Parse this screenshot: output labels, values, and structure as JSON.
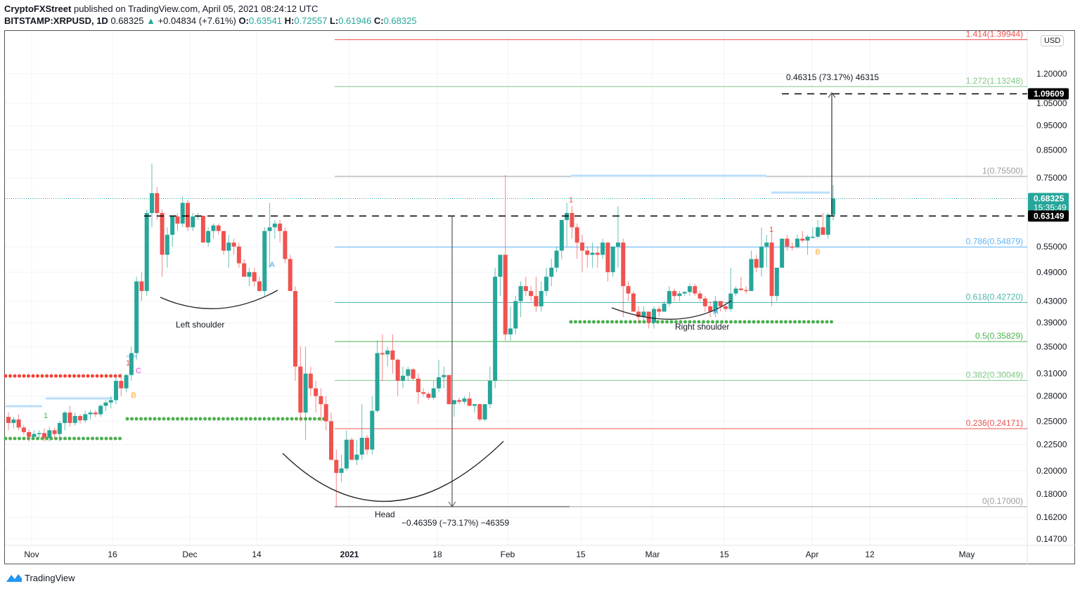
{
  "header": {
    "publisher": "CryptoFXStreet",
    "published_text": " published on TradingView.com, April 05, 2021 08:24:12 UTC",
    "symbol": "BITSTAMP:XRPUSD, 1D",
    "last": "0.68325",
    "change": "+0.04834 (+7.61%)",
    "o_label": "O:",
    "o": "0.63541",
    "h_label": "H:",
    "h": "0.72557",
    "l_label": "L:",
    "l": "0.61946",
    "c_label": "C:",
    "c": "0.68325"
  },
  "currency_button": "USD",
  "footer": {
    "brand": "TradingView"
  },
  "colors": {
    "up": "#26a69a",
    "down": "#ef5350",
    "accent": "#2196f3"
  },
  "chart_data": {
    "type": "candlestick",
    "title": "BITSTAMP:XRPUSD, 1D",
    "ylabel": "USD",
    "yscale": "log",
    "ylim": [
      0.14,
      1.45
    ],
    "y_ticks": [
      "1.20000",
      "1.05000",
      "0.95000",
      "0.85000",
      "0.75000",
      "0.55000",
      "0.49000",
      "0.43000",
      "0.39000",
      "0.35000",
      "0.31000",
      "0.28000",
      "0.25000",
      "0.22500",
      "0.20000",
      "0.18000",
      "0.16200",
      "0.14700"
    ],
    "x_ticks": [
      "Nov",
      "16",
      "Dec",
      "14",
      "2021",
      "18",
      "Feb",
      "15",
      "Mar",
      "15",
      "Apr",
      "12",
      "May"
    ],
    "price_labels": [
      {
        "value": "1.09609",
        "style": "black"
      },
      {
        "value": "0.68325",
        "sub": "15:35:49",
        "style": "green"
      },
      {
        "value": "0.63149",
        "style": "black"
      }
    ],
    "fib_levels": [
      {
        "label": "1.414(1.39944)",
        "price": 1.39944,
        "color": "#ef5350"
      },
      {
        "label": "1.272(1.13248)",
        "price": 1.13248,
        "color": "#81c784"
      },
      {
        "label": "1(0.75500)",
        "price": 0.755,
        "color": "#9e9e9e"
      },
      {
        "label": "0.786(0.54879)",
        "price": 0.54879,
        "color": "#64b5f6"
      },
      {
        "label": "0.618(0.42720)",
        "price": 0.4272,
        "color": "#4db6ac"
      },
      {
        "label": "0.5(0.35829)",
        "price": 0.35829,
        "color": "#4caf50"
      },
      {
        "label": "0.382(0.30049)",
        "price": 0.30049,
        "color": "#81c784"
      },
      {
        "label": "0.236(0.24171)",
        "price": 0.24171,
        "color": "#ef5350"
      },
      {
        "label": "0(0.17000)",
        "price": 0.17,
        "color": "#9e9e9e"
      }
    ],
    "annotations": {
      "left_shoulder": "Left shoulder",
      "head": "Head",
      "right_shoulder": "Right shoulder",
      "target_measure": "0.46315 (73.17%) 46315",
      "head_measure": "−0.46359 (−73.17%) −46359",
      "neckline": 0.63149,
      "target": 1.09609
    },
    "markers": [
      "1",
      "C",
      "B",
      "A",
      "1",
      "A",
      "1",
      "B",
      "1",
      "A"
    ],
    "candles": [
      [
        0.255,
        0.26,
        0.24,
        0.248
      ],
      [
        0.248,
        0.255,
        0.242,
        0.252
      ],
      [
        0.252,
        0.258,
        0.24,
        0.243
      ],
      [
        0.243,
        0.246,
        0.235,
        0.238
      ],
      [
        0.238,
        0.241,
        0.228,
        0.233
      ],
      [
        0.233,
        0.24,
        0.23,
        0.236
      ],
      [
        0.236,
        0.24,
        0.232,
        0.237
      ],
      [
        0.237,
        0.242,
        0.228,
        0.232
      ],
      [
        0.232,
        0.244,
        0.228,
        0.24
      ],
      [
        0.24,
        0.243,
        0.231,
        0.236
      ],
      [
        0.236,
        0.25,
        0.228,
        0.248
      ],
      [
        0.248,
        0.262,
        0.24,
        0.26
      ],
      [
        0.26,
        0.268,
        0.244,
        0.248
      ],
      [
        0.248,
        0.26,
        0.245,
        0.256
      ],
      [
        0.256,
        0.258,
        0.247,
        0.251
      ],
      [
        0.251,
        0.262,
        0.248,
        0.258
      ],
      [
        0.258,
        0.263,
        0.252,
        0.26
      ],
      [
        0.26,
        0.263,
        0.255,
        0.258
      ],
      [
        0.258,
        0.27,
        0.255,
        0.268
      ],
      [
        0.268,
        0.275,
        0.262,
        0.272
      ],
      [
        0.272,
        0.28,
        0.265,
        0.275
      ],
      [
        0.275,
        0.305,
        0.27,
        0.3
      ],
      [
        0.3,
        0.31,
        0.28,
        0.29
      ],
      [
        0.29,
        0.31,
        0.285,
        0.308
      ],
      [
        0.308,
        0.35,
        0.3,
        0.34
      ],
      [
        0.34,
        0.48,
        0.33,
        0.47
      ],
      [
        0.47,
        0.49,
        0.43,
        0.45
      ],
      [
        0.45,
        0.65,
        0.44,
        0.64
      ],
      [
        0.64,
        0.8,
        0.6,
        0.7
      ],
      [
        0.7,
        0.72,
        0.62,
        0.64
      ],
      [
        0.64,
        0.65,
        0.48,
        0.53
      ],
      [
        0.53,
        0.6,
        0.5,
        0.58
      ],
      [
        0.58,
        0.63,
        0.55,
        0.63
      ],
      [
        0.63,
        0.64,
        0.59,
        0.61
      ],
      [
        0.61,
        0.69,
        0.6,
        0.67
      ],
      [
        0.67,
        0.68,
        0.59,
        0.6
      ],
      [
        0.6,
        0.64,
        0.59,
        0.63
      ],
      [
        0.63,
        0.64,
        0.62,
        0.632
      ],
      [
        0.632,
        0.632,
        0.56,
        0.56
      ],
      [
        0.56,
        0.6,
        0.55,
        0.59
      ],
      [
        0.59,
        0.61,
        0.57,
        0.605
      ],
      [
        0.605,
        0.61,
        0.58,
        0.59
      ],
      [
        0.59,
        0.59,
        0.53,
        0.54
      ],
      [
        0.54,
        0.58,
        0.5,
        0.56
      ],
      [
        0.56,
        0.57,
        0.53,
        0.55
      ],
      [
        0.55,
        0.56,
        0.5,
        0.51
      ],
      [
        0.51,
        0.52,
        0.48,
        0.48
      ],
      [
        0.48,
        0.5,
        0.46,
        0.49
      ],
      [
        0.49,
        0.5,
        0.46,
        0.47
      ],
      [
        0.47,
        0.48,
        0.45,
        0.45
      ],
      [
        0.45,
        0.6,
        0.44,
        0.59
      ],
      [
        0.59,
        0.67,
        0.5,
        0.6
      ],
      [
        0.6,
        0.62,
        0.57,
        0.61
      ],
      [
        0.61,
        0.62,
        0.56,
        0.59
      ],
      [
        0.59,
        0.6,
        0.51,
        0.52
      ],
      [
        0.52,
        0.53,
        0.45,
        0.45
      ],
      [
        0.45,
        0.46,
        0.3,
        0.32
      ],
      [
        0.32,
        0.35,
        0.25,
        0.26
      ],
      [
        0.26,
        0.35,
        0.23,
        0.31
      ],
      [
        0.31,
        0.32,
        0.28,
        0.29
      ],
      [
        0.29,
        0.3,
        0.26,
        0.28
      ],
      [
        0.28,
        0.29,
        0.25,
        0.27
      ],
      [
        0.27,
        0.28,
        0.24,
        0.25
      ],
      [
        0.25,
        0.26,
        0.22,
        0.21
      ],
      [
        0.21,
        0.22,
        0.17,
        0.198
      ],
      [
        0.198,
        0.215,
        0.19,
        0.202
      ],
      [
        0.202,
        0.24,
        0.2,
        0.23
      ],
      [
        0.23,
        0.232,
        0.21,
        0.21
      ],
      [
        0.21,
        0.23,
        0.205,
        0.215
      ],
      [
        0.215,
        0.27,
        0.21,
        0.232
      ],
      [
        0.232,
        0.235,
        0.215,
        0.22
      ],
      [
        0.22,
        0.28,
        0.215,
        0.262
      ],
      [
        0.262,
        0.36,
        0.26,
        0.34
      ],
      [
        0.34,
        0.37,
        0.3,
        0.338
      ],
      [
        0.338,
        0.35,
        0.32,
        0.344
      ],
      [
        0.344,
        0.37,
        0.31,
        0.33
      ],
      [
        0.33,
        0.332,
        0.28,
        0.3
      ],
      [
        0.3,
        0.32,
        0.29,
        0.307
      ],
      [
        0.307,
        0.32,
        0.3,
        0.316
      ],
      [
        0.316,
        0.318,
        0.3,
        0.303
      ],
      [
        0.303,
        0.31,
        0.27,
        0.285
      ],
      [
        0.285,
        0.29,
        0.28,
        0.283
      ],
      [
        0.283,
        0.285,
        0.275,
        0.278
      ],
      [
        0.278,
        0.3,
        0.275,
        0.29
      ],
      [
        0.29,
        0.33,
        0.285,
        0.305
      ],
      [
        0.305,
        0.32,
        0.29,
        0.308
      ],
      [
        0.308,
        0.308,
        0.27,
        0.27
      ],
      [
        0.27,
        0.275,
        0.255,
        0.275
      ],
      [
        0.275,
        0.278,
        0.27,
        0.273
      ],
      [
        0.273,
        0.28,
        0.27,
        0.277
      ],
      [
        0.277,
        0.285,
        0.268,
        0.268
      ],
      [
        0.268,
        0.27,
        0.26,
        0.27
      ],
      [
        0.27,
        0.271,
        0.25,
        0.252
      ],
      [
        0.252,
        0.27,
        0.25,
        0.27
      ],
      [
        0.27,
        0.32,
        0.265,
        0.3
      ],
      [
        0.3,
        0.5,
        0.29,
        0.48
      ],
      [
        0.48,
        0.51,
        0.44,
        0.53
      ],
      [
        0.53,
        0.76,
        0.36,
        0.37
      ],
      [
        0.37,
        0.42,
        0.36,
        0.38
      ],
      [
        0.38,
        0.44,
        0.37,
        0.43
      ],
      [
        0.43,
        0.47,
        0.4,
        0.46
      ],
      [
        0.46,
        0.48,
        0.44,
        0.45
      ],
      [
        0.45,
        0.46,
        0.43,
        0.44
      ],
      [
        0.44,
        0.48,
        0.41,
        0.42
      ],
      [
        0.42,
        0.47,
        0.41,
        0.45
      ],
      [
        0.45,
        0.5,
        0.44,
        0.48
      ],
      [
        0.48,
        0.52,
        0.46,
        0.5
      ],
      [
        0.5,
        0.55,
        0.49,
        0.54
      ],
      [
        0.54,
        0.6,
        0.52,
        0.62
      ],
      [
        0.62,
        0.67,
        0.55,
        0.64
      ],
      [
        0.64,
        0.66,
        0.57,
        0.6
      ],
      [
        0.6,
        0.61,
        0.52,
        0.56
      ],
      [
        0.56,
        0.58,
        0.49,
        0.54
      ],
      [
        0.54,
        0.55,
        0.5,
        0.53
      ],
      [
        0.53,
        0.56,
        0.5,
        0.535
      ],
      [
        0.535,
        0.55,
        0.5,
        0.53
      ],
      [
        0.53,
        0.57,
        0.52,
        0.56
      ],
      [
        0.56,
        0.56,
        0.47,
        0.49
      ],
      [
        0.49,
        0.55,
        0.48,
        0.55
      ],
      [
        0.55,
        0.66,
        0.5,
        0.56
      ],
      [
        0.56,
        0.57,
        0.4,
        0.46
      ],
      [
        0.46,
        0.47,
        0.43,
        0.445
      ],
      [
        0.445,
        0.45,
        0.41,
        0.41
      ],
      [
        0.41,
        0.42,
        0.39,
        0.4
      ],
      [
        0.4,
        0.42,
        0.39,
        0.41
      ],
      [
        0.41,
        0.41,
        0.38,
        0.39
      ],
      [
        0.39,
        0.42,
        0.38,
        0.415
      ],
      [
        0.415,
        0.42,
        0.4,
        0.41
      ],
      [
        0.41,
        0.43,
        0.41,
        0.425
      ],
      [
        0.425,
        0.46,
        0.42,
        0.45
      ],
      [
        0.45,
        0.455,
        0.43,
        0.44
      ],
      [
        0.44,
        0.45,
        0.43,
        0.445
      ],
      [
        0.445,
        0.45,
        0.44,
        0.448
      ],
      [
        0.448,
        0.465,
        0.44,
        0.46
      ],
      [
        0.46,
        0.465,
        0.44,
        0.445
      ],
      [
        0.445,
        0.45,
        0.43,
        0.435
      ],
      [
        0.435,
        0.44,
        0.41,
        0.42
      ],
      [
        0.42,
        0.43,
        0.4,
        0.41
      ],
      [
        0.41,
        0.44,
        0.4,
        0.43
      ],
      [
        0.43,
        0.43,
        0.41,
        0.42
      ],
      [
        0.42,
        0.423,
        0.41,
        0.415
      ],
      [
        0.415,
        0.5,
        0.41,
        0.445
      ],
      [
        0.445,
        0.46,
        0.44,
        0.455
      ],
      [
        0.455,
        0.48,
        0.45,
        0.452
      ],
      [
        0.452,
        0.46,
        0.445,
        0.45
      ],
      [
        0.45,
        0.54,
        0.45,
        0.52
      ],
      [
        0.52,
        0.53,
        0.49,
        0.5
      ],
      [
        0.5,
        0.6,
        0.48,
        0.55
      ],
      [
        0.55,
        0.58,
        0.5,
        0.56
      ],
      [
        0.56,
        0.6,
        0.42,
        0.44
      ],
      [
        0.44,
        0.5,
        0.43,
        0.5
      ],
      [
        0.5,
        0.57,
        0.5,
        0.57
      ],
      [
        0.57,
        0.58,
        0.54,
        0.55
      ],
      [
        0.55,
        0.56,
        0.54,
        0.548
      ],
      [
        0.548,
        0.58,
        0.545,
        0.57
      ],
      [
        0.57,
        0.59,
        0.56,
        0.565
      ],
      [
        0.565,
        0.58,
        0.53,
        0.575
      ],
      [
        0.575,
        0.6,
        0.57,
        0.575
      ],
      [
        0.575,
        0.62,
        0.57,
        0.6
      ],
      [
        0.6,
        0.64,
        0.58,
        0.58
      ],
      [
        0.58,
        0.64,
        0.57,
        0.635
      ],
      [
        0.635,
        0.726,
        0.619,
        0.683
      ]
    ]
  }
}
